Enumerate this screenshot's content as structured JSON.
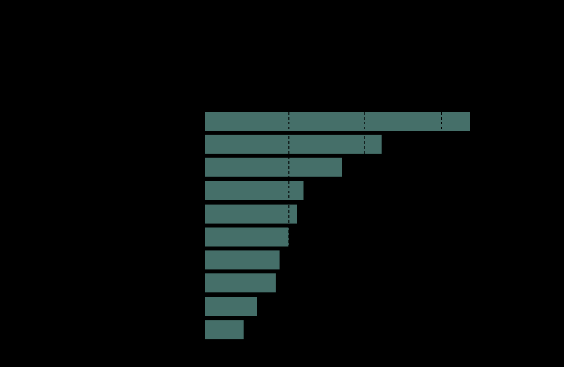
{
  "chart_data": {
    "type": "bar",
    "orientation": "horizontal",
    "title": "",
    "xlabel": "",
    "ylabel": "",
    "categories": [
      "",
      "",
      "",
      "",
      "",
      "",
      "",
      "",
      "",
      ""
    ],
    "values": [
      100,
      66.5,
      51.5,
      37,
      34.5,
      31.5,
      28,
      26.5,
      19.5,
      14.5
    ],
    "xlim": [
      0,
      100
    ],
    "gridlines_x": [
      31.5,
      60,
      89
    ],
    "grid": true,
    "legend": "none",
    "colors": {
      "background": "#000000",
      "bar": "#456f69",
      "grid": "#000000"
    }
  }
}
